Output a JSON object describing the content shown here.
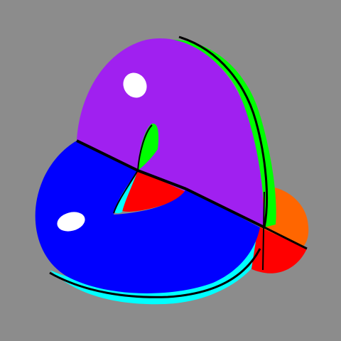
{
  "scene": {
    "description_shape": "trefoil-like-knot-torus",
    "colors": {
      "background": "#8C8C8C",
      "purple": "#A020F0",
      "green": "#00FF00",
      "orange": "#FF6600",
      "red": "#FF0000",
      "blue": "#0000FF",
      "cyan": "#00FFFF",
      "highlight": "#FFFFFF",
      "edge": "#000000"
    }
  }
}
